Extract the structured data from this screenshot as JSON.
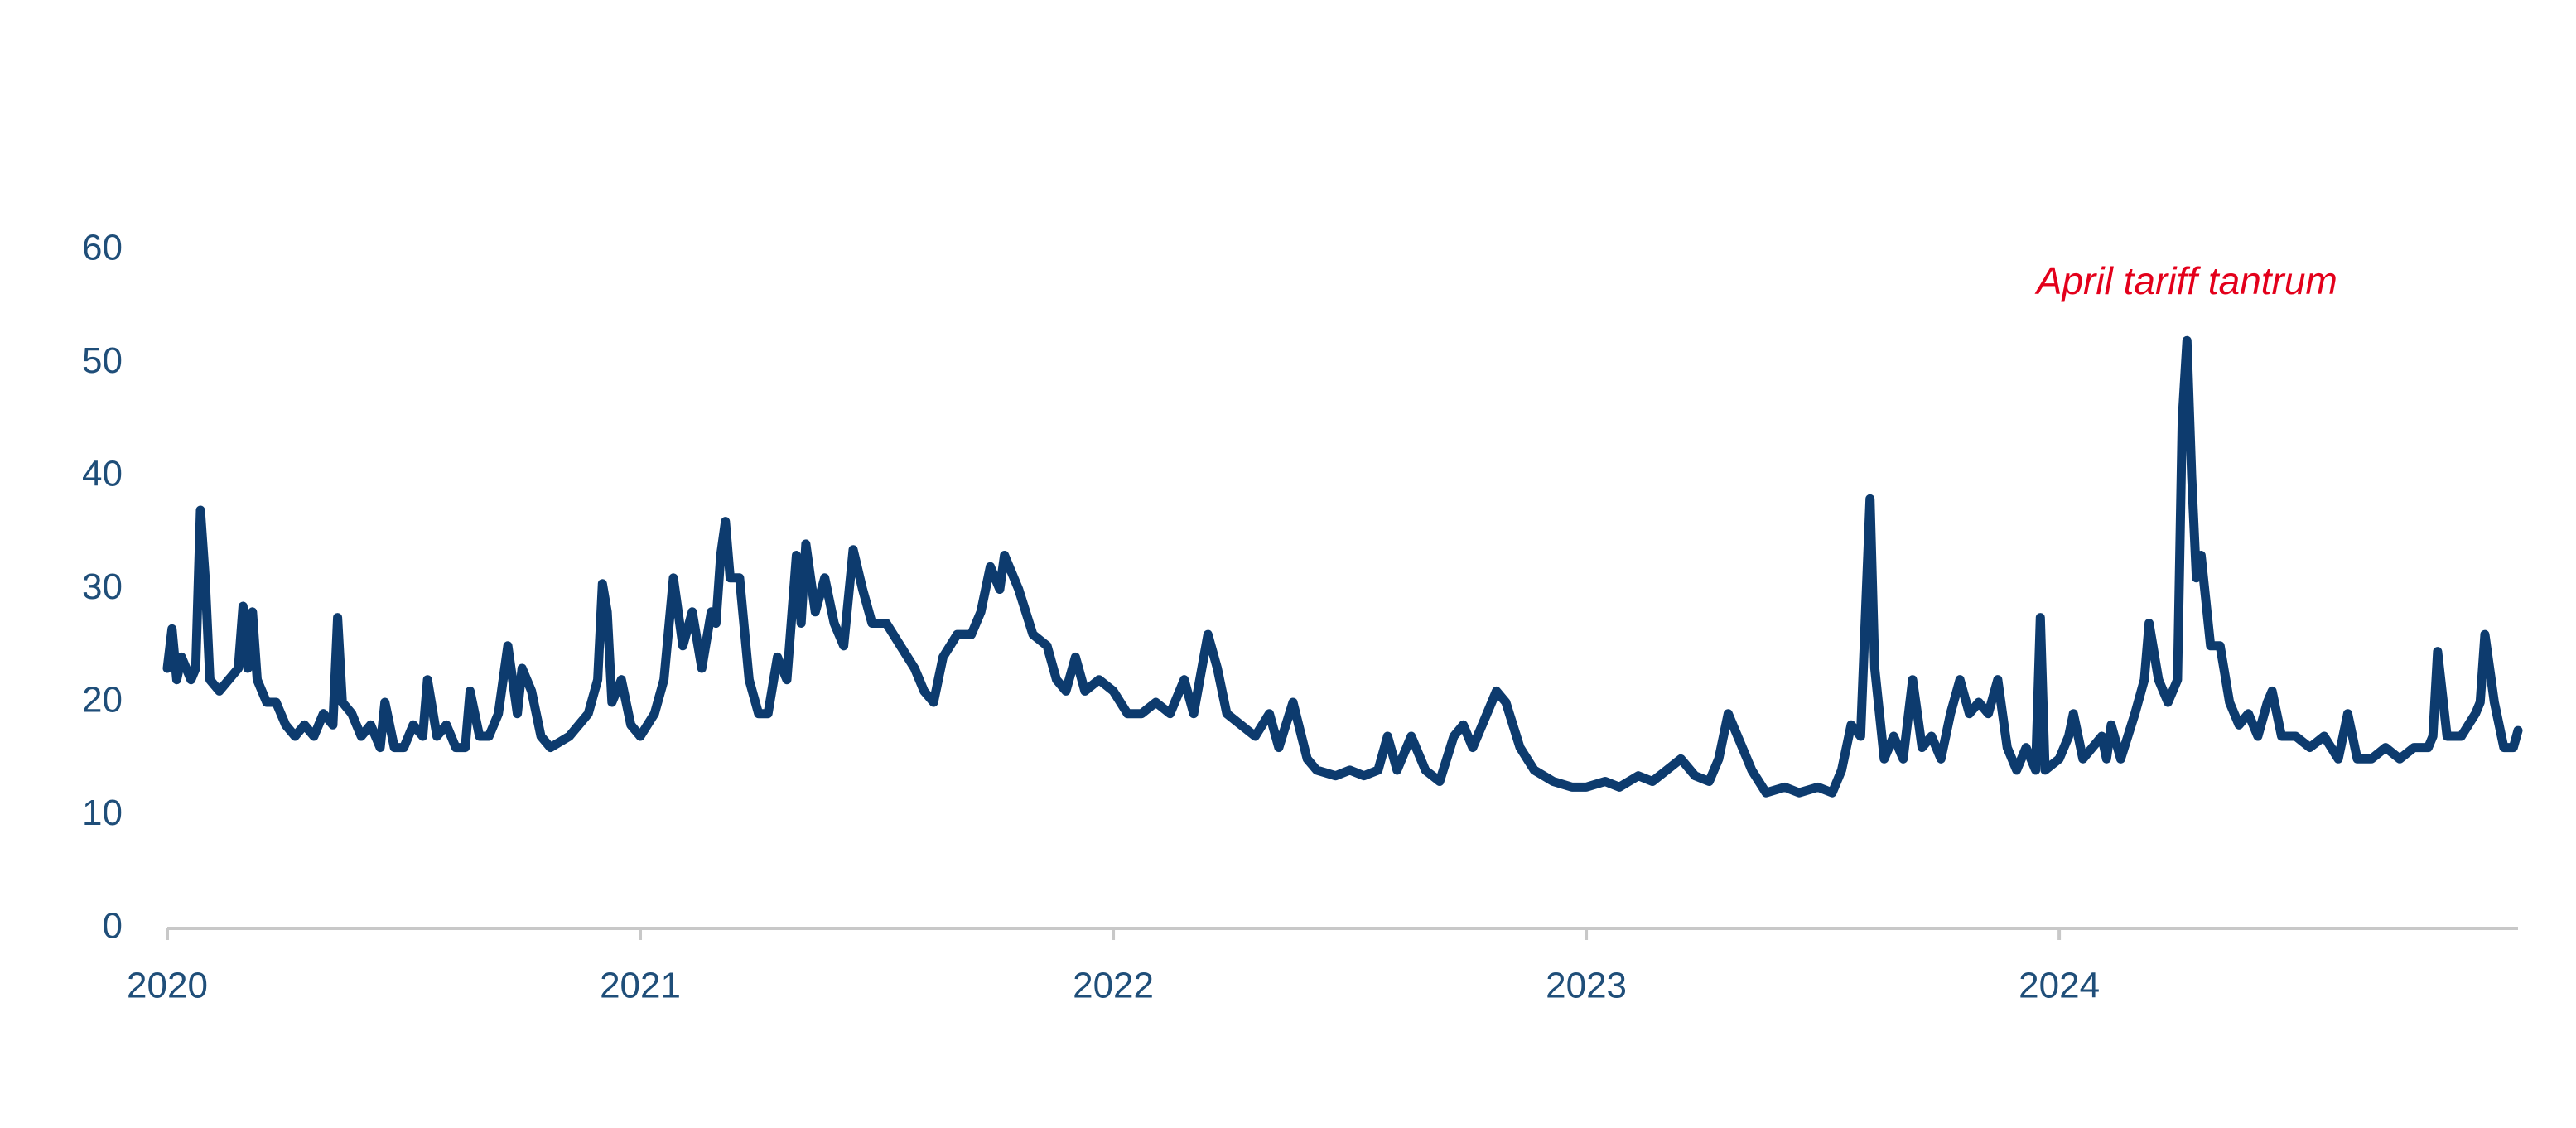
{
  "chart_data": {
    "type": "line",
    "annotations": [
      {
        "text": "April tariff tantrum",
        "x": 2024.27,
        "y": 57
      }
    ],
    "xlim": [
      2020,
      2024.97
    ],
    "xticks": [
      2020,
      2021,
      2022,
      2023,
      2024
    ],
    "ylim": [
      0,
      60
    ],
    "yticks": [
      0,
      10,
      20,
      30,
      40,
      50,
      60
    ],
    "grid": false,
    "series": [
      {
        "color": "#0d3b6e",
        "x": [
          2020.0,
          2020.01,
          2020.02,
          2020.03,
          2020.05,
          2020.06,
          2020.07,
          2020.08,
          2020.09,
          2020.11,
          2020.13,
          2020.15,
          2020.16,
          2020.17,
          2020.18,
          2020.19,
          2020.21,
          2020.23,
          2020.25,
          2020.27,
          2020.29,
          2020.31,
          2020.33,
          2020.35,
          2020.36,
          2020.37,
          2020.39,
          2020.41,
          2020.43,
          2020.45,
          2020.46,
          2020.48,
          2020.5,
          2020.52,
          2020.54,
          2020.55,
          2020.57,
          2020.59,
          2020.61,
          2020.63,
          2020.64,
          2020.66,
          2020.68,
          2020.7,
          2020.72,
          2020.74,
          2020.75,
          2020.77,
          2020.79,
          2020.81,
          2020.83,
          2020.85,
          2020.87,
          2020.89,
          2020.91,
          2020.92,
          2020.93,
          2020.94,
          2020.96,
          2020.98,
          2021.0,
          2021.03,
          2021.05,
          2021.07,
          2021.09,
          2021.11,
          2021.13,
          2021.15,
          2021.16,
          2021.17,
          2021.18,
          2021.19,
          2021.21,
          2021.23,
          2021.25,
          2021.27,
          2021.29,
          2021.31,
          2021.33,
          2021.34,
          2021.35,
          2021.37,
          2021.39,
          2021.41,
          2021.43,
          2021.45,
          2021.47,
          2021.49,
          2021.52,
          2021.55,
          2021.58,
          2021.6,
          2021.62,
          2021.64,
          2021.67,
          2021.7,
          2021.72,
          2021.74,
          2021.76,
          2021.77,
          2021.8,
          2021.83,
          2021.86,
          2021.88,
          2021.9,
          2021.92,
          2021.94,
          2021.97,
          2022.0,
          2022.03,
          2022.06,
          2022.09,
          2022.12,
          2022.15,
          2022.17,
          2022.2,
          2022.22,
          2022.24,
          2022.27,
          2022.3,
          2022.33,
          2022.35,
          2022.38,
          2022.41,
          2022.43,
          2022.47,
          2022.5,
          2022.53,
          2022.56,
          2022.58,
          2022.6,
          2022.63,
          2022.66,
          2022.69,
          2022.72,
          2022.74,
          2022.76,
          2022.79,
          2022.81,
          2022.83,
          2022.86,
          2022.89,
          2022.93,
          2022.97,
          2023.0,
          2023.04,
          2023.07,
          2023.11,
          2023.14,
          2023.17,
          2023.2,
          2023.23,
          2023.26,
          2023.28,
          2023.3,
          2023.32,
          2023.35,
          2023.38,
          2023.42,
          2023.45,
          2023.49,
          2023.52,
          2023.54,
          2023.56,
          2023.58,
          2023.6,
          2023.61,
          2023.63,
          2023.65,
          2023.67,
          2023.69,
          2023.71,
          2023.73,
          2023.75,
          2023.77,
          2023.79,
          2023.81,
          2023.83,
          2023.85,
          2023.87,
          2023.89,
          2023.91,
          2023.93,
          2023.95,
          2023.96,
          2023.97,
          2024.0,
          2024.02,
          2024.03,
          2024.05,
          2024.07,
          2024.09,
          2024.1,
          2024.11,
          2024.13,
          2024.16,
          2024.18,
          2024.19,
          2024.21,
          2024.23,
          2024.25,
          2024.26,
          2024.27,
          2024.28,
          2024.29,
          2024.3,
          2024.32,
          2024.34,
          2024.36,
          2024.38,
          2024.4,
          2024.42,
          2024.44,
          2024.45,
          2024.47,
          2024.5,
          2024.53,
          2024.56,
          2024.59,
          2024.61,
          2024.63,
          2024.66,
          2024.69,
          2024.72,
          2024.75,
          2024.78,
          2024.79,
          2024.8,
          2024.82,
          2024.85,
          2024.88,
          2024.89,
          2024.9,
          2024.92,
          2024.94,
          2024.96,
          2024.97
        ],
        "values": [
          23,
          26.5,
          22,
          24,
          22,
          23,
          37,
          31,
          22,
          21,
          22,
          23,
          28.5,
          23,
          28,
          22,
          20,
          20,
          18,
          17,
          18,
          17,
          19,
          18,
          27.5,
          20,
          19,
          17,
          18,
          16,
          20,
          16,
          16,
          18,
          17,
          22,
          17,
          18,
          16,
          16,
          21,
          17,
          17,
          19,
          25,
          19,
          23,
          21,
          17,
          16,
          16.5,
          17,
          18,
          19,
          22,
          30.5,
          28,
          20,
          22,
          18,
          17,
          19,
          22,
          31,
          25,
          28,
          23,
          28,
          27,
          33,
          36,
          31,
          31,
          22,
          19,
          19,
          24,
          22,
          33,
          27,
          34,
          28,
          31,
          27,
          25,
          33.5,
          30,
          27,
          27,
          25,
          23,
          21,
          20,
          24,
          26,
          26,
          28,
          32,
          30,
          33,
          30,
          26,
          25,
          22,
          21,
          24,
          21,
          22,
          21,
          19,
          19,
          20,
          19,
          22,
          19,
          26,
          23,
          19,
          18,
          17,
          19,
          16,
          20,
          15,
          14,
          13.5,
          14,
          13.5,
          14,
          17,
          14,
          17,
          14,
          13,
          17,
          18,
          16,
          19,
          21,
          20,
          16,
          14,
          13,
          12.5,
          12.5,
          13,
          12.5,
          13.5,
          13,
          14,
          15,
          13.5,
          13,
          15,
          19,
          17,
          14,
          12,
          12.5,
          12,
          12.5,
          12,
          14,
          18,
          17,
          38,
          23,
          15,
          17,
          15,
          22,
          16,
          17,
          15,
          19,
          22,
          19,
          20,
          19,
          22,
          16,
          14,
          16,
          14,
          27.5,
          14,
          15,
          17,
          19,
          15,
          16,
          17,
          15,
          18,
          15,
          19,
          22,
          27,
          22,
          20,
          22,
          45,
          52,
          40,
          31,
          33,
          25,
          25,
          20,
          18,
          19,
          17,
          20,
          21,
          17,
          17,
          16,
          17,
          15,
          19,
          15,
          15,
          16,
          15,
          16,
          16,
          17,
          24.5,
          17,
          17,
          19,
          20,
          26,
          20,
          16,
          16,
          17.5
        ]
      }
    ]
  }
}
